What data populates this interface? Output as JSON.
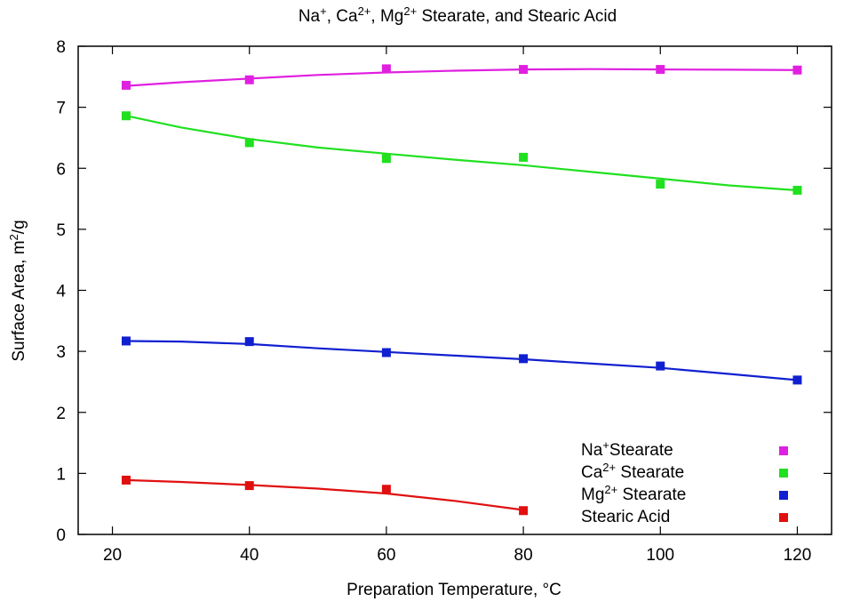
{
  "chart_data": {
    "type": "scatter",
    "title": {
      "segments": [
        {
          "t": "Na"
        },
        {
          "t": "+",
          "sup": true
        },
        {
          "t": ", Ca"
        },
        {
          "t": "2+",
          "sup": true
        },
        {
          "t": ", Mg"
        },
        {
          "t": "2+",
          "sup": true
        },
        {
          "t": " Stearate, and Stearic Acid"
        }
      ]
    },
    "xlabel": "Preparation Temperature, °C",
    "ylabel": {
      "segments": [
        {
          "t": "Surface Area, m"
        },
        {
          "t": "2",
          "sup": true
        },
        {
          "t": "/g"
        }
      ]
    },
    "xlim": [
      15,
      125
    ],
    "ylim": [
      0,
      8
    ],
    "xticks": [
      20,
      40,
      60,
      80,
      100,
      120
    ],
    "yticks": [
      0,
      1,
      2,
      3,
      4,
      5,
      6,
      7,
      8
    ],
    "grid": false,
    "legend_position": "bottom-right",
    "series": [
      {
        "name": "Na+ Stearate",
        "label_segments": [
          {
            "t": "Na"
          },
          {
            "t": "+",
            "sup": true
          },
          {
            "t": "Stearate"
          }
        ],
        "color": "#e020e0",
        "x": [
          22,
          40,
          60,
          80,
          100,
          120
        ],
        "y": [
          7.36,
          7.45,
          7.63,
          7.62,
          7.62,
          7.61
        ],
        "fit": [
          [
            22,
            7.35
          ],
          [
            30,
            7.41
          ],
          [
            40,
            7.47
          ],
          [
            50,
            7.53
          ],
          [
            60,
            7.57
          ],
          [
            70,
            7.6
          ],
          [
            80,
            7.62
          ],
          [
            90,
            7.625
          ],
          [
            100,
            7.62
          ],
          [
            110,
            7.615
          ],
          [
            120,
            7.61
          ]
        ]
      },
      {
        "name": "Ca2+ Stearate",
        "label_segments": [
          {
            "t": "Ca"
          },
          {
            "t": "2+",
            "sup": true
          },
          {
            "t": " Stearate"
          }
        ],
        "color": "#20e020",
        "x": [
          22,
          40,
          60,
          80,
          100,
          120
        ],
        "y": [
          6.86,
          6.42,
          6.16,
          6.18,
          5.74,
          5.64
        ],
        "fit": [
          [
            22,
            6.86
          ],
          [
            30,
            6.67
          ],
          [
            40,
            6.48
          ],
          [
            50,
            6.34
          ],
          [
            60,
            6.24
          ],
          [
            70,
            6.14
          ],
          [
            80,
            6.05
          ],
          [
            90,
            5.94
          ],
          [
            100,
            5.83
          ],
          [
            110,
            5.72
          ],
          [
            120,
            5.64
          ]
        ]
      },
      {
        "name": "Mg2+ Stearate",
        "label_segments": [
          {
            "t": "Mg"
          },
          {
            "t": "2+",
            "sup": true
          },
          {
            "t": " Stearate"
          }
        ],
        "color": "#1020d0",
        "x": [
          22,
          40,
          60,
          80,
          100,
          120
        ],
        "y": [
          3.17,
          3.16,
          2.98,
          2.88,
          2.76,
          2.53
        ],
        "fit": [
          [
            22,
            3.17
          ],
          [
            30,
            3.16
          ],
          [
            40,
            3.12
          ],
          [
            50,
            3.05
          ],
          [
            60,
            2.99
          ],
          [
            70,
            2.93
          ],
          [
            80,
            2.87
          ],
          [
            90,
            2.8
          ],
          [
            100,
            2.73
          ],
          [
            110,
            2.63
          ],
          [
            120,
            2.53
          ]
        ]
      },
      {
        "name": "Stearic Acid",
        "label_segments": [
          {
            "t": "Stearic Acid"
          }
        ],
        "color": "#e01010",
        "x": [
          22,
          40,
          60,
          80
        ],
        "y": [
          0.89,
          0.8,
          0.74,
          0.39
        ],
        "fit": [
          [
            22,
            0.89
          ],
          [
            30,
            0.86
          ],
          [
            40,
            0.81
          ],
          [
            50,
            0.75
          ],
          [
            60,
            0.67
          ],
          [
            70,
            0.55
          ],
          [
            80,
            0.4
          ]
        ]
      }
    ]
  }
}
